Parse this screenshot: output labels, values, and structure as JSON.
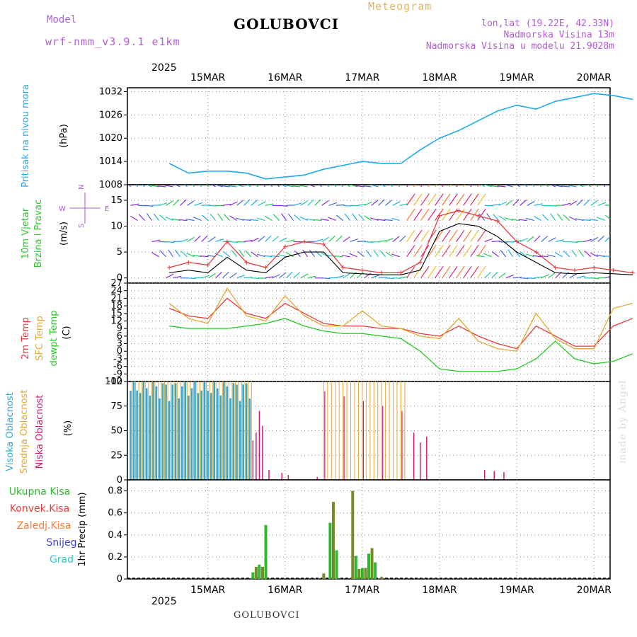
{
  "header": {
    "model_label": "Model",
    "model_name": "wrf-nmm_v3.9.1 e1km",
    "station": "GOLUBOVCI",
    "meteogram": "Meteogram",
    "lonlat": "lon,lat (19.22E, 42.33N)",
    "elevation": "Nadmorska Visina 13m",
    "elevation_model": "Nadmorska Visina u modelu 21.9028m",
    "footer_station": "GOLUBOVCI",
    "made_by": "made by Angel"
  },
  "colors": {
    "pressure": "#1eaaf0",
    "temp2m": "#e83c3c",
    "sfc_temp": "#e6a832",
    "dewpoint": "#22cc22",
    "cloud_high": "#2ea8d8",
    "cloud_mid": "#e6a832",
    "cloud_low": "#d01870",
    "precip_total": "#2eb82e",
    "precip_conv": "#e83c3c",
    "precip_strat": "#ff7a30",
    "snow": "#4040e0",
    "graupel": "#30c8c8",
    "wind_gust": "#e83c3c",
    "wind_speed": "#000000"
  },
  "axis": {
    "year": "2025",
    "dates": [
      "15MAR",
      "16MAR",
      "17MAR",
      "18MAR",
      "19MAR",
      "20MAR"
    ]
  },
  "wind_legend": {
    "w": "W",
    "e": "E",
    "n": "N",
    "s": "S"
  },
  "chart_data": [
    {
      "type": "line",
      "panel": "pressure",
      "ylabel_lines": [
        "Pritisak na nivou mora"
      ],
      "unit": "(hPa)",
      "yticks": [
        "1032",
        "1026",
        "1020",
        "1014",
        "1008"
      ],
      "ylim": [
        1008,
        1033
      ],
      "x_hours": [
        0,
        6,
        12,
        18,
        24,
        30,
        36,
        42,
        48,
        54,
        60,
        66,
        72,
        78,
        84,
        90,
        96,
        102,
        108,
        114,
        120,
        126,
        132,
        138,
        144
      ],
      "series": [
        {
          "values": [
            1013.5,
            1011,
            1011.5,
            1011.5,
            1011,
            1009.5,
            1010,
            1010.5,
            1012,
            1013,
            1014,
            1013.5,
            1013.5,
            1017,
            1020,
            1022,
            1024.5,
            1027,
            1028.5,
            1027.5,
            1029.5,
            1030.5,
            1031.5,
            1031,
            1030
          ]
        }
      ]
    },
    {
      "type": "line",
      "panel": "wind",
      "ylabel_lines": [
        "10m Vjetar",
        "Brzina i Pravac"
      ],
      "unit": "(m/s)",
      "yticks": [
        "15",
        "10",
        "5",
        "0"
      ],
      "ylim": [
        -1,
        18
      ],
      "x_hours": [
        0,
        6,
        12,
        18,
        24,
        30,
        36,
        42,
        48,
        54,
        60,
        66,
        72,
        78,
        84,
        90,
        96,
        102,
        108,
        114,
        120,
        126,
        132,
        138,
        144
      ],
      "series": [
        {
          "name": "gust",
          "values": [
            2,
            3,
            2.5,
            7,
            3,
            2,
            6,
            7,
            6.5,
            2,
            1.5,
            1,
            1,
            3,
            12,
            13,
            12,
            11,
            7,
            5,
            2,
            1.5,
            2,
            1.5,
            1
          ]
        },
        {
          "name": "speed",
          "values": [
            1,
            1.5,
            1,
            4,
            1.5,
            1,
            4,
            5,
            5,
            1,
            0.8,
            0.6,
            0.6,
            1.5,
            9,
            10.5,
            10,
            8,
            5,
            3,
            1,
            0.8,
            1,
            0.8,
            0.6
          ]
        }
      ]
    },
    {
      "type": "line",
      "panel": "temperature",
      "ylabel_lines": [
        "2m Temp",
        "SFC Temp",
        "dewpt Temp"
      ],
      "unit": "(C)",
      "yticks": [
        "27",
        "24",
        "21",
        "18",
        "15",
        "12",
        "9",
        "6",
        "3",
        "0",
        "-3",
        "-6",
        "-9",
        "-12"
      ],
      "ylim": [
        -12,
        27
      ],
      "x_hours": [
        0,
        6,
        12,
        18,
        24,
        30,
        36,
        42,
        48,
        54,
        60,
        66,
        72,
        78,
        84,
        90,
        96,
        102,
        108,
        114,
        120,
        126,
        132,
        138,
        144
      ],
      "series": [
        {
          "name": "2m Temp",
          "values": [
            17,
            14,
            13,
            21,
            15,
            13,
            19,
            15,
            11,
            10,
            10,
            9,
            9,
            7,
            6,
            10,
            6,
            3,
            1,
            10,
            6,
            2,
            2,
            10,
            13
          ]
        },
        {
          "name": "SFC Temp",
          "values": [
            19,
            13,
            11,
            25,
            14,
            12,
            22,
            14,
            10,
            10,
            16,
            10,
            9,
            6,
            5,
            13,
            4,
            1,
            0,
            15,
            5,
            1,
            1,
            17,
            19
          ]
        },
        {
          "name": "dewpt Temp",
          "values": [
            10,
            9,
            9,
            9,
            10,
            11,
            13,
            10,
            8,
            7,
            7,
            6,
            5,
            0,
            -7,
            -8,
            -8,
            -8,
            -7,
            -3,
            4,
            -3,
            -5,
            -4,
            -1
          ]
        }
      ]
    },
    {
      "type": "bar",
      "panel": "clouds",
      "ylabel_lines": [
        "Visoka Oblacnost",
        "Srednja Oblacnost",
        "Niska Oblacnost"
      ],
      "unit": "(%)",
      "yticks": [
        "100",
        "75",
        "50",
        "25",
        "0"
      ],
      "ylim": [
        0,
        100
      ]
    },
    {
      "type": "bar",
      "panel": "precip",
      "legend": [
        "Ukupna Kisa",
        "Konvek.Kisa",
        "Zaledj.Kisa",
        "Snijeg",
        "Grad"
      ],
      "ylabel": "1hr Precip (mm)",
      "yticks": [
        "0.8",
        "0.6",
        "0.4",
        "0.2",
        "0"
      ],
      "ylim": [
        0,
        0.9
      ],
      "bars": [
        {
          "h": 26,
          "v": 0.06
        },
        {
          "h": 27,
          "v": 0.11
        },
        {
          "h": 28,
          "v": 0.13
        },
        {
          "h": 29,
          "v": 0.11
        },
        {
          "h": 30,
          "v": 0.49
        },
        {
          "h": 48,
          "v": 0.05
        },
        {
          "h": 50,
          "v": 0.51
        },
        {
          "h": 51,
          "v": 0.7
        },
        {
          "h": 52,
          "v": 0.26
        },
        {
          "h": 57,
          "v": 0.8
        },
        {
          "h": 58,
          "v": 0.21
        },
        {
          "h": 59,
          "v": 0.09
        },
        {
          "h": 60,
          "v": 0.1
        },
        {
          "h": 61,
          "v": 0.1
        },
        {
          "h": 62,
          "v": 0.23
        },
        {
          "h": 63,
          "v": 0.28
        },
        {
          "h": 64,
          "v": 0.15
        },
        {
          "h": 66,
          "v": 0.02
        }
      ]
    }
  ]
}
